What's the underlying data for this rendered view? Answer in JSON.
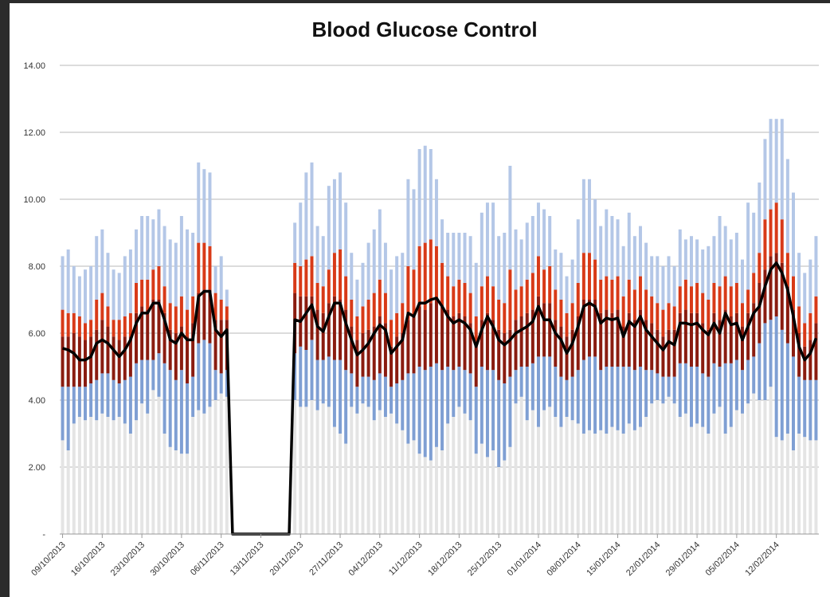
{
  "chart_data": {
    "type": "bar",
    "stacked": true,
    "title": "Blood Glucose Control",
    "ylim": [
      0,
      14
    ],
    "yticks": [
      {
        "value": 0,
        "label": "-"
      },
      {
        "value": 2,
        "label": "2.00"
      },
      {
        "value": 4,
        "label": "4.00"
      },
      {
        "value": 6,
        "label": "6.00"
      },
      {
        "value": 8,
        "label": "8.00"
      },
      {
        "value": 10,
        "label": "10.00"
      },
      {
        "value": 12,
        "label": "12.00"
      },
      {
        "value": 14,
        "label": "14.00"
      }
    ],
    "grid": true,
    "categories": [
      "09/10/2013",
      null,
      null,
      null,
      null,
      null,
      null,
      "16/10/2013",
      null,
      null,
      null,
      null,
      null,
      null,
      "23/10/2013",
      null,
      null,
      null,
      null,
      null,
      null,
      "30/10/2013",
      null,
      null,
      null,
      null,
      null,
      null,
      "06/11/2013",
      null,
      null,
      null,
      null,
      null,
      null,
      "13/11/2013",
      null,
      null,
      null,
      null,
      null,
      null,
      "20/11/2013",
      null,
      null,
      null,
      null,
      null,
      null,
      "27/11/2013",
      null,
      null,
      null,
      null,
      null,
      null,
      "04/12/2013",
      null,
      null,
      null,
      null,
      null,
      null,
      "11/12/2013",
      null,
      null,
      null,
      null,
      null,
      null,
      "18/12/2013",
      null,
      null,
      null,
      null,
      null,
      null,
      "25/12/2013",
      null,
      null,
      null,
      null,
      null,
      null,
      "01/01/2014",
      null,
      null,
      null,
      null,
      null,
      null,
      "08/01/2014",
      null,
      null,
      null,
      null,
      null,
      null,
      "15/01/2014",
      null,
      null,
      null,
      null,
      null,
      null,
      "22/01/2014",
      null,
      null,
      null,
      null,
      null,
      null,
      "29/01/2014",
      null,
      null,
      null,
      null,
      null,
      null,
      "05/02/2014",
      null,
      null,
      null,
      null,
      null,
      null,
      "12/02/2014",
      null,
      null,
      null,
      null,
      null,
      null,
      null
    ],
    "series": [
      {
        "type": "bar",
        "color": "#e4e4e4",
        "values": [
          2.8,
          2.5,
          3.3,
          3.5,
          3.4,
          3.5,
          3.4,
          3.6,
          3.5,
          3.4,
          3.5,
          3.3,
          3.0,
          3.4,
          3.9,
          3.6,
          4.3,
          4.1,
          3.0,
          2.6,
          2.5,
          2.4,
          2.4,
          3.5,
          3.7,
          3.6,
          3.8,
          4.0,
          4.2,
          4.1,
          null,
          null,
          null,
          null,
          null,
          null,
          null,
          null,
          null,
          null,
          null,
          4.0,
          3.8,
          3.8,
          4.0,
          3.7,
          3.9,
          3.8,
          3.2,
          3.0,
          2.7,
          3.8,
          3.6,
          3.9,
          3.8,
          3.4,
          3.7,
          3.5,
          3.6,
          3.3,
          3.1,
          2.7,
          2.8,
          2.4,
          2.3,
          2.2,
          2.6,
          2.5,
          3.3,
          3.5,
          3.8,
          3.6,
          3.4,
          2.4,
          2.7,
          2.3,
          2.5,
          2.0,
          2.2,
          2.6,
          3.9,
          4.1,
          3.4,
          3.7,
          3.2,
          3.7,
          3.8,
          3.5,
          3.2,
          3.5,
          3.4,
          3.3,
          3.0,
          3.1,
          3.0,
          3.1,
          3.0,
          3.2,
          3.1,
          3.0,
          3.3,
          3.1,
          3.2,
          3.5,
          3.9,
          4.0,
          3.9,
          4.1,
          3.9,
          3.5,
          3.6,
          3.2,
          3.3,
          3.2,
          3.0,
          3.6,
          3.8,
          3.0,
          3.2,
          3.7,
          3.6,
          3.9,
          4.2,
          4.0,
          4.0,
          4.4,
          2.9,
          2.8,
          3.0,
          2.5,
          3.0,
          2.9,
          2.8,
          2.8
        ]
      },
      {
        "type": "bar",
        "color": "#7f9fd3",
        "values": [
          1.6,
          1.9,
          1.1,
          0.9,
          1.0,
          1.0,
          1.2,
          1.2,
          1.3,
          1.2,
          1.0,
          1.3,
          1.7,
          1.7,
          1.3,
          1.6,
          0.9,
          1.3,
          2.1,
          2.3,
          2.1,
          2.5,
          2.1,
          1.2,
          2.0,
          2.2,
          1.9,
          0.9,
          0.6,
          0.8,
          null,
          null,
          null,
          null,
          null,
          null,
          null,
          null,
          null,
          null,
          null,
          1.4,
          1.8,
          1.7,
          1.8,
          1.5,
          1.3,
          1.5,
          2.0,
          2.2,
          2.2,
          1.0,
          0.8,
          0.8,
          0.9,
          1.2,
          1.1,
          1.2,
          0.8,
          1.2,
          1.5,
          2.1,
          2.0,
          2.6,
          2.6,
          2.8,
          2.5,
          2.4,
          1.7,
          1.4,
          1.2,
          1.3,
          1.4,
          2.0,
          2.3,
          2.6,
          2.4,
          2.6,
          2.3,
          2.1,
          1.0,
          0.9,
          1.6,
          1.4,
          2.1,
          1.6,
          1.5,
          1.5,
          1.5,
          1.1,
          1.3,
          1.6,
          2.2,
          2.2,
          2.3,
          1.8,
          2.0,
          1.8,
          1.9,
          2.0,
          1.7,
          1.8,
          1.8,
          1.4,
          1.0,
          0.8,
          0.8,
          0.6,
          0.8,
          1.6,
          1.5,
          1.8,
          1.7,
          1.6,
          1.7,
          1.5,
          1.2,
          2.1,
          1.9,
          1.5,
          1.3,
          1.3,
          1.1,
          1.7,
          2.3,
          2.0,
          3.6,
          3.3,
          2.7,
          2.8,
          1.7,
          1.7,
          1.8,
          1.8
        ]
      },
      {
        "type": "bar",
        "color": "#8a1c10",
        "values": [
          1.5,
          1.5,
          1.6,
          1.5,
          1.4,
          1.4,
          1.5,
          1.6,
          1.4,
          1.3,
          1.3,
          1.3,
          1.2,
          1.5,
          1.6,
          1.5,
          1.8,
          1.6,
          1.5,
          1.2,
          1.4,
          1.3,
          1.4,
          1.6,
          1.5,
          1.5,
          1.6,
          1.5,
          1.6,
          1.5,
          null,
          null,
          null,
          null,
          null,
          null,
          null,
          null,
          null,
          null,
          null,
          1.8,
          1.5,
          1.6,
          1.3,
          1.5,
          1.4,
          1.6,
          1.9,
          1.8,
          1.8,
          1.4,
          1.4,
          1.3,
          1.4,
          1.6,
          1.7,
          1.6,
          1.2,
          1.4,
          1.4,
          1.6,
          1.7,
          1.8,
          1.8,
          1.9,
          1.9,
          1.9,
          1.7,
          1.6,
          1.6,
          1.6,
          1.5,
          1.3,
          1.4,
          1.7,
          1.5,
          1.5,
          1.5,
          1.4,
          1.5,
          1.5,
          1.6,
          1.6,
          1.8,
          1.6,
          1.6,
          1.4,
          1.5,
          1.3,
          1.4,
          1.6,
          1.8,
          1.7,
          1.7,
          1.7,
          1.7,
          1.6,
          1.7,
          1.2,
          1.6,
          1.5,
          1.7,
          1.5,
          1.4,
          1.3,
          1.2,
          1.4,
          1.4,
          1.5,
          1.6,
          1.6,
          1.6,
          1.5,
          1.4,
          1.5,
          1.4,
          1.6,
          1.4,
          1.4,
          1.3,
          1.4,
          1.6,
          1.8,
          1.6,
          1.9,
          1.9,
          2.0,
          1.7,
          1.4,
          1.3,
          1.0,
          1.2,
          1.7
        ]
      },
      {
        "type": "bar",
        "color": "#d83a18",
        "values": [
          0.8,
          0.7,
          0.6,
          0.6,
          0.5,
          0.5,
          0.9,
          0.8,
          0.6,
          0.5,
          0.6,
          0.6,
          0.7,
          0.9,
          0.8,
          0.9,
          0.9,
          1.0,
          0.8,
          0.8,
          0.8,
          0.9,
          0.8,
          0.8,
          1.5,
          1.4,
          1.3,
          0.8,
          0.6,
          0.4,
          null,
          null,
          null,
          null,
          null,
          null,
          null,
          null,
          null,
          null,
          null,
          0.9,
          0.9,
          1.1,
          1.2,
          0.8,
          0.8,
          1.0,
          1.3,
          1.5,
          1.0,
          0.8,
          0.7,
          0.8,
          0.9,
          1.0,
          1.1,
          0.9,
          0.8,
          0.7,
          0.9,
          1.6,
          1.4,
          1.8,
          2.0,
          1.9,
          1.6,
          1.3,
          1.0,
          0.9,
          1.0,
          1.0,
          0.9,
          0.8,
          1.0,
          1.1,
          1.0,
          0.9,
          0.9,
          1.8,
          0.9,
          0.9,
          1.0,
          1.1,
          1.2,
          1.0,
          1.1,
          0.9,
          0.8,
          0.7,
          0.8,
          1.0,
          1.4,
          1.4,
          1.2,
          1.0,
          1.0,
          1.0,
          1.0,
          0.9,
          1.0,
          0.9,
          1.0,
          0.9,
          0.8,
          0.8,
          0.8,
          0.8,
          0.7,
          0.8,
          0.9,
          0.8,
          0.9,
          0.9,
          0.9,
          0.9,
          1.0,
          1.0,
          0.9,
          0.9,
          0.7,
          0.7,
          0.9,
          0.9,
          1.5,
          1.4,
          1.5,
          1.3,
          1.0,
          1.0,
          0.8,
          0.7,
          0.8,
          0.8
        ]
      },
      {
        "type": "bar",
        "color": "#b4c7e7",
        "values": [
          1.6,
          1.9,
          1.4,
          1.2,
          1.6,
          1.6,
          1.9,
          1.9,
          1.6,
          1.5,
          1.4,
          1.8,
          1.9,
          1.6,
          1.9,
          1.9,
          1.5,
          1.7,
          1.8,
          1.9,
          1.9,
          2.4,
          2.4,
          1.9,
          2.4,
          2.2,
          2.2,
          0.8,
          1.3,
          0.5,
          null,
          null,
          null,
          null,
          null,
          null,
          null,
          null,
          null,
          null,
          null,
          1.2,
          1.9,
          2.6,
          2.8,
          1.7,
          1.5,
          2.5,
          2.2,
          2.3,
          2.2,
          1.4,
          1.1,
          1.3,
          1.7,
          1.9,
          2.1,
          1.5,
          1.5,
          1.7,
          1.5,
          2.6,
          2.4,
          2.9,
          2.9,
          2.7,
          2.0,
          1.3,
          1.3,
          1.6,
          1.4,
          1.5,
          1.7,
          1.6,
          2.2,
          2.2,
          2.5,
          1.9,
          2.1,
          3.1,
          1.8,
          1.4,
          1.7,
          1.7,
          1.6,
          1.8,
          1.5,
          1.2,
          1.4,
          1.1,
          1.3,
          1.9,
          2.2,
          2.2,
          1.8,
          1.6,
          2.0,
          1.9,
          1.7,
          1.5,
          2.0,
          1.6,
          1.5,
          1.4,
          1.2,
          1.4,
          1.3,
          1.4,
          1.2,
          1.7,
          1.2,
          1.5,
          1.3,
          1.3,
          1.6,
          1.4,
          2.1,
          1.5,
          1.4,
          1.5,
          1.3,
          2.6,
          1.8,
          2.1,
          2.4,
          2.7,
          2.5,
          3.0,
          2.8,
          2.5,
          1.6,
          1.5,
          1.6,
          1.8
        ]
      },
      {
        "type": "line",
        "color": "#000000",
        "values": [
          5.55,
          5.5,
          5.4,
          5.2,
          5.2,
          5.3,
          5.7,
          5.8,
          5.7,
          5.5,
          5.3,
          5.5,
          5.8,
          6.3,
          6.6,
          6.6,
          6.9,
          6.9,
          6.4,
          5.8,
          5.7,
          6.0,
          5.8,
          5.8,
          7.1,
          7.25,
          7.25,
          6.1,
          5.9,
          6.1,
          0,
          0,
          0,
          0,
          0,
          0,
          0,
          0,
          0,
          0,
          0,
          6.4,
          6.35,
          6.6,
          6.85,
          6.2,
          6.05,
          6.5,
          6.9,
          6.9,
          6.3,
          5.8,
          5.35,
          5.5,
          5.7,
          6.0,
          6.25,
          6.1,
          5.4,
          5.6,
          5.8,
          6.6,
          6.5,
          6.9,
          6.9,
          7.0,
          7.05,
          6.8,
          6.5,
          6.3,
          6.4,
          6.3,
          6.1,
          5.6,
          6.1,
          6.5,
          6.2,
          5.8,
          5.65,
          5.8,
          6.0,
          6.1,
          6.2,
          6.35,
          6.8,
          6.4,
          6.4,
          6.0,
          5.8,
          5.4,
          5.7,
          6.2,
          6.8,
          6.9,
          6.8,
          6.3,
          6.45,
          6.4,
          6.45,
          5.9,
          6.35,
          6.2,
          6.5,
          6.1,
          5.9,
          5.7,
          5.5,
          5.75,
          5.65,
          6.3,
          6.3,
          6.25,
          6.3,
          6.1,
          5.95,
          6.3,
          6.0,
          6.6,
          6.25,
          6.3,
          5.8,
          6.2,
          6.6,
          6.8,
          7.4,
          7.9,
          8.1,
          7.8,
          7.3,
          6.5,
          5.6,
          5.2,
          5.4,
          5.85
        ]
      }
    ]
  }
}
